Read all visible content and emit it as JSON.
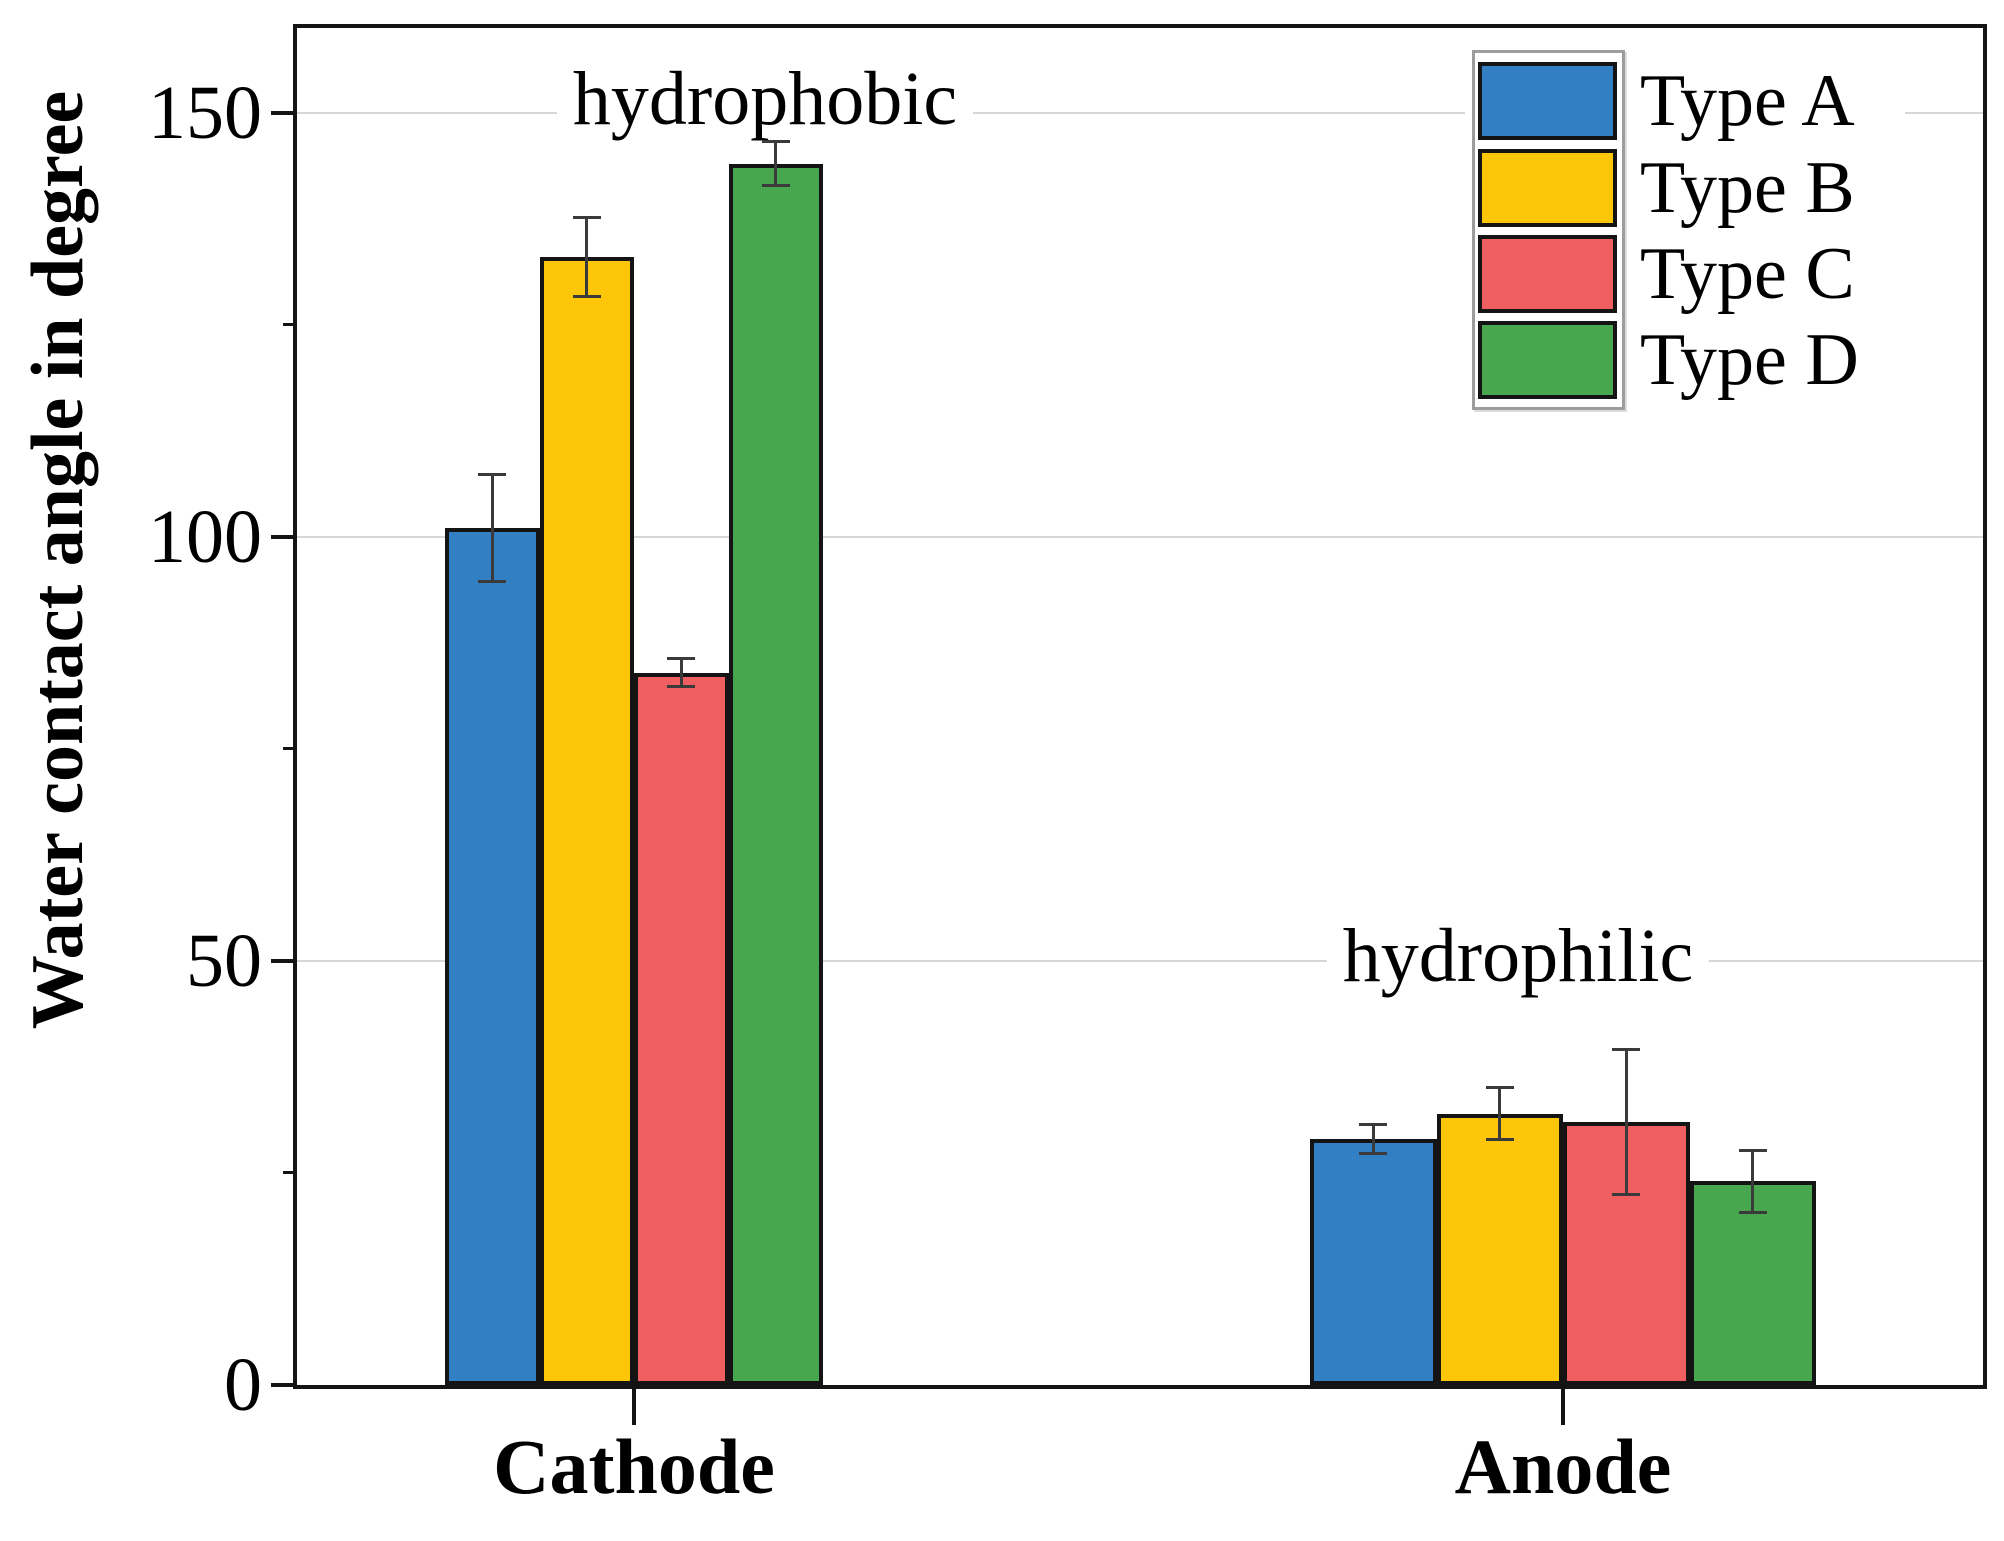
{
  "chart_data": {
    "type": "bar",
    "title": "",
    "ylabel": "Water contact angle in degree",
    "xlabel": "",
    "ylim": [
      0,
      160
    ],
    "yticks": [
      0,
      50,
      100,
      150
    ],
    "yticks_minor": [
      25,
      75,
      125
    ],
    "grid": "horizontal-major",
    "legend_position": "top-right",
    "categories": [
      "Cathode",
      "Anode"
    ],
    "series": [
      {
        "name": "Type A",
        "color": "#337fc3",
        "values": [
          101,
          29
        ],
        "errors": [
          6.3,
          1.7
        ]
      },
      {
        "name": "Type B",
        "color": "#fdc609",
        "values": [
          133,
          32
        ],
        "errors": [
          4.6,
          3.1
        ]
      },
      {
        "name": "Type C",
        "color": "#ef5e61",
        "values": [
          84,
          31
        ],
        "errors": [
          1.7,
          8.5
        ]
      },
      {
        "name": "Type D",
        "color": "#48a74e",
        "values": [
          144,
          24
        ],
        "errors": [
          2.6,
          3.7
        ]
      }
    ],
    "annotations": [
      {
        "text": "hydrophobic",
        "category": "Cathode"
      },
      {
        "text": "hydrophilic",
        "category": "Anode"
      }
    ],
    "axis_color": "#141414",
    "grid_color": "#d6d6d6",
    "error_bar_color": "#3a3a3a"
  }
}
